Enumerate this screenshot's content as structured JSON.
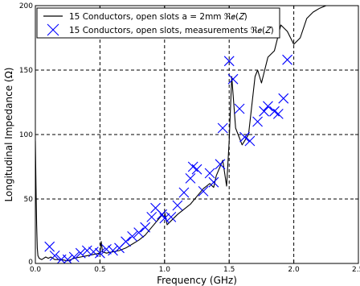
{
  "chart_data": {
    "type": "line",
    "xlabel": "Frequency (GHz)",
    "ylabel": "Longitudinal Impedance (Ω)",
    "xlim": [
      0,
      2.5
    ],
    "ylim": [
      0,
      200
    ],
    "x_ticks": [
      "0.0",
      "0.5",
      "1.0",
      "1.5",
      "2.0",
      "2.5"
    ],
    "y_ticks": [
      "0",
      "50",
      "100",
      "150",
      "200"
    ],
    "grid": true,
    "grid_style": "dashed",
    "legend_position": "top-left",
    "series": [
      {
        "name": "15 Conductors, open slots a = 2mm ℜ𝑒(𝑍)",
        "style": "line",
        "color": "#000000",
        "points": [
          [
            0.0,
            95
          ],
          [
            0.005,
            60
          ],
          [
            0.01,
            30
          ],
          [
            0.015,
            12
          ],
          [
            0.02,
            6
          ],
          [
            0.03,
            4
          ],
          [
            0.05,
            3
          ],
          [
            0.08,
            5
          ],
          [
            0.1,
            4
          ],
          [
            0.12,
            5
          ],
          [
            0.15,
            3
          ],
          [
            0.2,
            3
          ],
          [
            0.25,
            2
          ],
          [
            0.3,
            4
          ],
          [
            0.35,
            5
          ],
          [
            0.4,
            6
          ],
          [
            0.45,
            7
          ],
          [
            0.5,
            8
          ],
          [
            0.51,
            17
          ],
          [
            0.52,
            9
          ],
          [
            0.55,
            8
          ],
          [
            0.6,
            9
          ],
          [
            0.65,
            10
          ],
          [
            0.7,
            12
          ],
          [
            0.75,
            15
          ],
          [
            0.8,
            18
          ],
          [
            0.85,
            22
          ],
          [
            0.9,
            28
          ],
          [
            0.95,
            34
          ],
          [
            1.0,
            40
          ],
          [
            1.02,
            30
          ],
          [
            1.05,
            33
          ],
          [
            1.1,
            38
          ],
          [
            1.15,
            42
          ],
          [
            1.2,
            46
          ],
          [
            1.25,
            52
          ],
          [
            1.3,
            58
          ],
          [
            1.35,
            62
          ],
          [
            1.38,
            59
          ],
          [
            1.4,
            68
          ],
          [
            1.45,
            80
          ],
          [
            1.48,
            60
          ],
          [
            1.5,
            95
          ],
          [
            1.52,
            145
          ],
          [
            1.55,
            105
          ],
          [
            1.6,
            92
          ],
          [
            1.65,
            100
          ],
          [
            1.7,
            145
          ],
          [
            1.72,
            150
          ],
          [
            1.75,
            140
          ],
          [
            1.8,
            160
          ],
          [
            1.85,
            165
          ],
          [
            1.9,
            185
          ],
          [
            1.95,
            180
          ],
          [
            2.0,
            170
          ],
          [
            2.05,
            175
          ],
          [
            2.1,
            190
          ],
          [
            2.15,
            195
          ],
          [
            2.2,
            198
          ],
          [
            2.25,
            200
          ]
        ]
      },
      {
        "name": "15 Conductors, open slots, measurements ℜ𝑒(𝑍)",
        "style": "marker",
        "marker": "x",
        "color": "#0000ff",
        "points": [
          [
            0.11,
            13
          ],
          [
            0.15,
            6
          ],
          [
            0.2,
            3
          ],
          [
            0.25,
            3
          ],
          [
            0.3,
            5
          ],
          [
            0.35,
            8
          ],
          [
            0.4,
            10
          ],
          [
            0.45,
            9
          ],
          [
            0.5,
            8
          ],
          [
            0.55,
            11
          ],
          [
            0.6,
            10
          ],
          [
            0.65,
            12
          ],
          [
            0.7,
            17
          ],
          [
            0.75,
            21
          ],
          [
            0.8,
            24
          ],
          [
            0.85,
            28
          ],
          [
            0.9,
            36
          ],
          [
            0.93,
            43
          ],
          [
            0.98,
            38
          ],
          [
            1.0,
            35
          ],
          [
            1.05,
            36
          ],
          [
            1.1,
            45
          ],
          [
            1.15,
            55
          ],
          [
            1.2,
            66
          ],
          [
            1.22,
            75
          ],
          [
            1.25,
            73
          ],
          [
            1.3,
            56
          ],
          [
            1.35,
            70
          ],
          [
            1.38,
            63
          ],
          [
            1.43,
            77
          ],
          [
            1.45,
            105
          ],
          [
            1.5,
            157
          ],
          [
            1.53,
            143
          ],
          [
            1.58,
            120
          ],
          [
            1.62,
            98
          ],
          [
            1.66,
            95
          ],
          [
            1.72,
            110
          ],
          [
            1.77,
            118
          ],
          [
            1.8,
            122
          ],
          [
            1.85,
            118
          ],
          [
            1.88,
            116
          ],
          [
            1.92,
            128
          ],
          [
            1.95,
            158
          ]
        ]
      }
    ]
  }
}
